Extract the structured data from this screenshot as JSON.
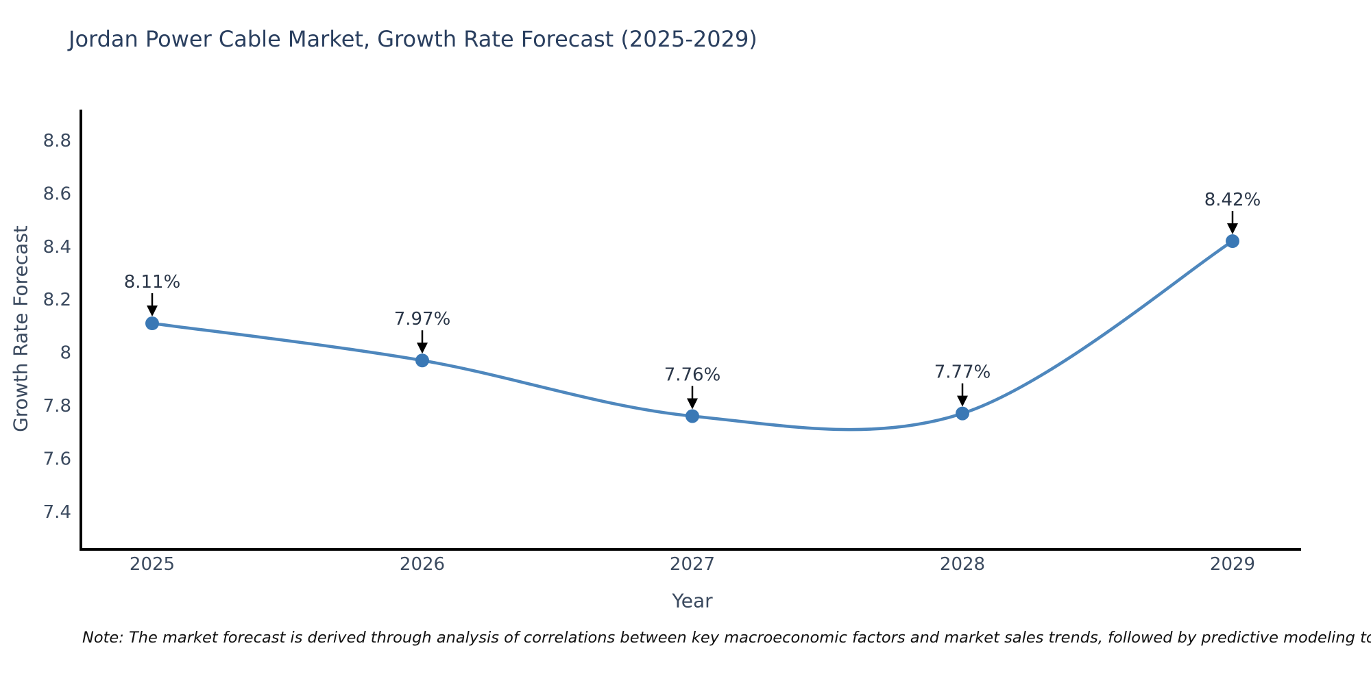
{
  "note": "Note: The market forecast is derived through analysis of correlations between key macroeconomic factors and market sales trends, followed by predictive modeling to project future sales",
  "chart_data": {
    "type": "line",
    "title": "Jordan Power Cable Market, Growth Rate Forecast (2025-2029)",
    "xlabel": "Year",
    "ylabel": "Growth Rate Forecast",
    "x": [
      2025,
      2026,
      2027,
      2028,
      2029
    ],
    "y": [
      8.11,
      7.97,
      7.76,
      7.77,
      8.42
    ],
    "point_labels": [
      "8.11%",
      "7.97%",
      "7.76%",
      "7.77%",
      "8.42%"
    ],
    "x_tick_labels": [
      "2025",
      "2026",
      "2027",
      "2028",
      "2029"
    ],
    "y_tick_values": [
      7.4,
      7.6,
      7.8,
      8.0,
      8.2,
      8.4,
      8.6,
      8.8
    ],
    "y_tick_labels": [
      "7.4",
      "7.6",
      "7.8",
      "8",
      "8.2",
      "8.4",
      "8.6",
      "8.8"
    ],
    "ylim": [
      7.26,
      8.92
    ],
    "line_shape": "spline",
    "grid": false,
    "legend": "none",
    "colors": {
      "line": "#4e87bd",
      "marker": "#3a78b5",
      "axis": "#000000",
      "arrow": "#000000",
      "title": "#2a3f5f",
      "tick": "#3b4a5f",
      "annotation": "#2a3648",
      "note": "#111111",
      "background": "#ffffff"
    }
  }
}
